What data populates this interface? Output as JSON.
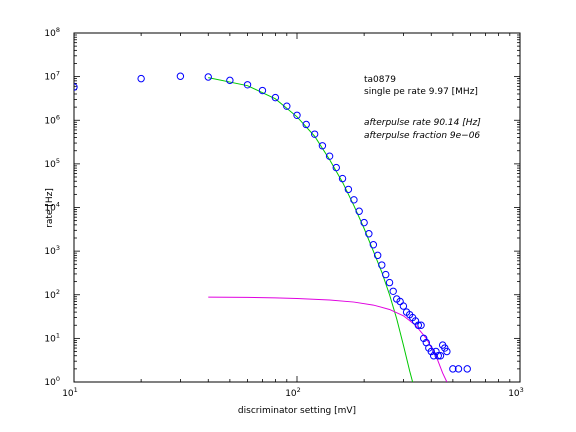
{
  "chart_data": {
    "type": "scatter",
    "xscale": "log",
    "yscale": "log",
    "xlim": [
      10,
      1000
    ],
    "ylim": [
      1,
      100000000
    ],
    "xlabel": "discriminator setting [mV]",
    "ylabel": "rate [Hz]",
    "x_ticks": [
      {
        "value": 10,
        "base": "10",
        "exp": "1"
      },
      {
        "value": 100,
        "base": "10",
        "exp": "2"
      },
      {
        "value": 1000,
        "base": "10",
        "exp": "3"
      }
    ],
    "y_ticks": [
      {
        "value": 1,
        "base": "10",
        "exp": "0"
      },
      {
        "value": 10,
        "base": "10",
        "exp": "1"
      },
      {
        "value": 100,
        "base": "10",
        "exp": "2"
      },
      {
        "value": 1000,
        "base": "10",
        "exp": "3"
      },
      {
        "value": 10000,
        "base": "10",
        "exp": "4"
      },
      {
        "value": 100000,
        "base": "10",
        "exp": "5"
      },
      {
        "value": 1000000,
        "base": "10",
        "exp": "6"
      },
      {
        "value": 10000000,
        "base": "10",
        "exp": "7"
      },
      {
        "value": 100000000,
        "base": "10",
        "exp": "8"
      }
    ],
    "annotations": [
      {
        "text": "ta0879",
        "style": "normal"
      },
      {
        "text": "single pe rate 9.97 [MHz]",
        "style": "normal"
      },
      {
        "text": "afterpulse rate 90.14 [Hz]",
        "style": "italic"
      },
      {
        "text": "afterpulse fraction 9e−06",
        "style": "italic"
      }
    ],
    "series": [
      {
        "kind": "markers",
        "color": "#0000ff",
        "points": [
          [
            10,
            5800000
          ],
          [
            20,
            9000000
          ],
          [
            30,
            10200000
          ],
          [
            40,
            9800000
          ],
          [
            50,
            8200000
          ],
          [
            60,
            6500000
          ],
          [
            70,
            4800000
          ],
          [
            80,
            3300000
          ],
          [
            90,
            2100000
          ],
          [
            100,
            1300000
          ],
          [
            110,
            800000
          ],
          [
            120,
            480000
          ],
          [
            130,
            260000
          ],
          [
            140,
            150000
          ],
          [
            150,
            82000
          ],
          [
            160,
            46000
          ],
          [
            170,
            26000
          ],
          [
            180,
            15000
          ],
          [
            190,
            8200
          ],
          [
            200,
            4500
          ],
          [
            210,
            2500
          ],
          [
            220,
            1400
          ],
          [
            230,
            800
          ],
          [
            240,
            480
          ],
          [
            250,
            290
          ],
          [
            260,
            190
          ],
          [
            270,
            120
          ],
          [
            280,
            80
          ],
          [
            290,
            70
          ],
          [
            300,
            55
          ],
          [
            310,
            40
          ],
          [
            320,
            35
          ],
          [
            330,
            30
          ],
          [
            340,
            25
          ],
          [
            350,
            20
          ],
          [
            360,
            20
          ],
          [
            370,
            10
          ],
          [
            380,
            8
          ],
          [
            390,
            6
          ],
          [
            400,
            5
          ],
          [
            410,
            4
          ],
          [
            420,
            5
          ],
          [
            430,
            4
          ],
          [
            440,
            4
          ],
          [
            450,
            7
          ],
          [
            460,
            6
          ],
          [
            470,
            5
          ],
          [
            500,
            2
          ],
          [
            530,
            2
          ],
          [
            580,
            2
          ]
        ]
      },
      {
        "kind": "line",
        "color": "#00c800",
        "points": [
          [
            40,
            9500000
          ],
          [
            60,
            6200000
          ],
          [
            80,
            3100000
          ],
          [
            100,
            1200000
          ],
          [
            120,
            430000
          ],
          [
            140,
            125000
          ],
          [
            160,
            38000
          ],
          [
            180,
            11000
          ],
          [
            200,
            3300
          ],
          [
            220,
            1000
          ],
          [
            240,
            330
          ],
          [
            260,
            100
          ],
          [
            280,
            28
          ],
          [
            300,
            7
          ],
          [
            320,
            1.8
          ],
          [
            330,
            1
          ]
        ]
      },
      {
        "kind": "line",
        "color": "#e000e0",
        "points": [
          [
            40,
            88
          ],
          [
            60,
            87
          ],
          [
            80,
            85
          ],
          [
            100,
            82
          ],
          [
            140,
            76
          ],
          [
            180,
            68
          ],
          [
            220,
            58
          ],
          [
            260,
            46
          ],
          [
            300,
            33
          ],
          [
            340,
            20
          ],
          [
            380,
            10
          ],
          [
            420,
            4
          ],
          [
            450,
            1.6
          ],
          [
            470,
            1
          ]
        ]
      }
    ]
  }
}
